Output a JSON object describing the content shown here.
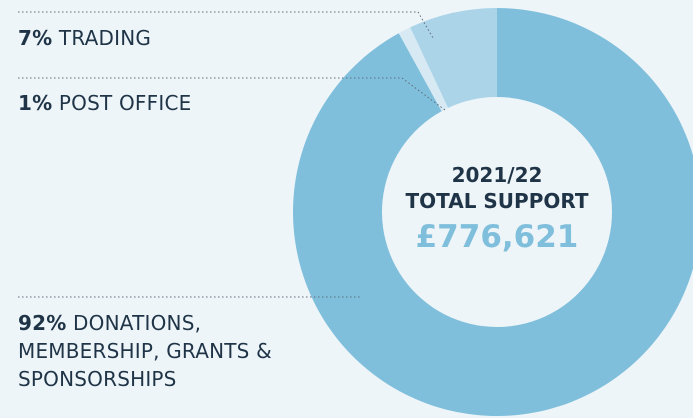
{
  "chart_data": {
    "type": "donut",
    "period": "2021/22",
    "title": "TOTAL SUPPORT",
    "total_label": "£776,621",
    "categories": [
      "DONATIONS, MEMBERSHIP, GRANTS & SPONSORSHIPS",
      "POST OFFICE",
      "TRADING"
    ],
    "values": [
      92,
      1,
      7
    ],
    "value_labels": [
      "92%",
      "1%",
      "7%"
    ],
    "colors": [
      "#80bfdc",
      "#d7eaf4",
      "#abd4e9"
    ]
  }
}
